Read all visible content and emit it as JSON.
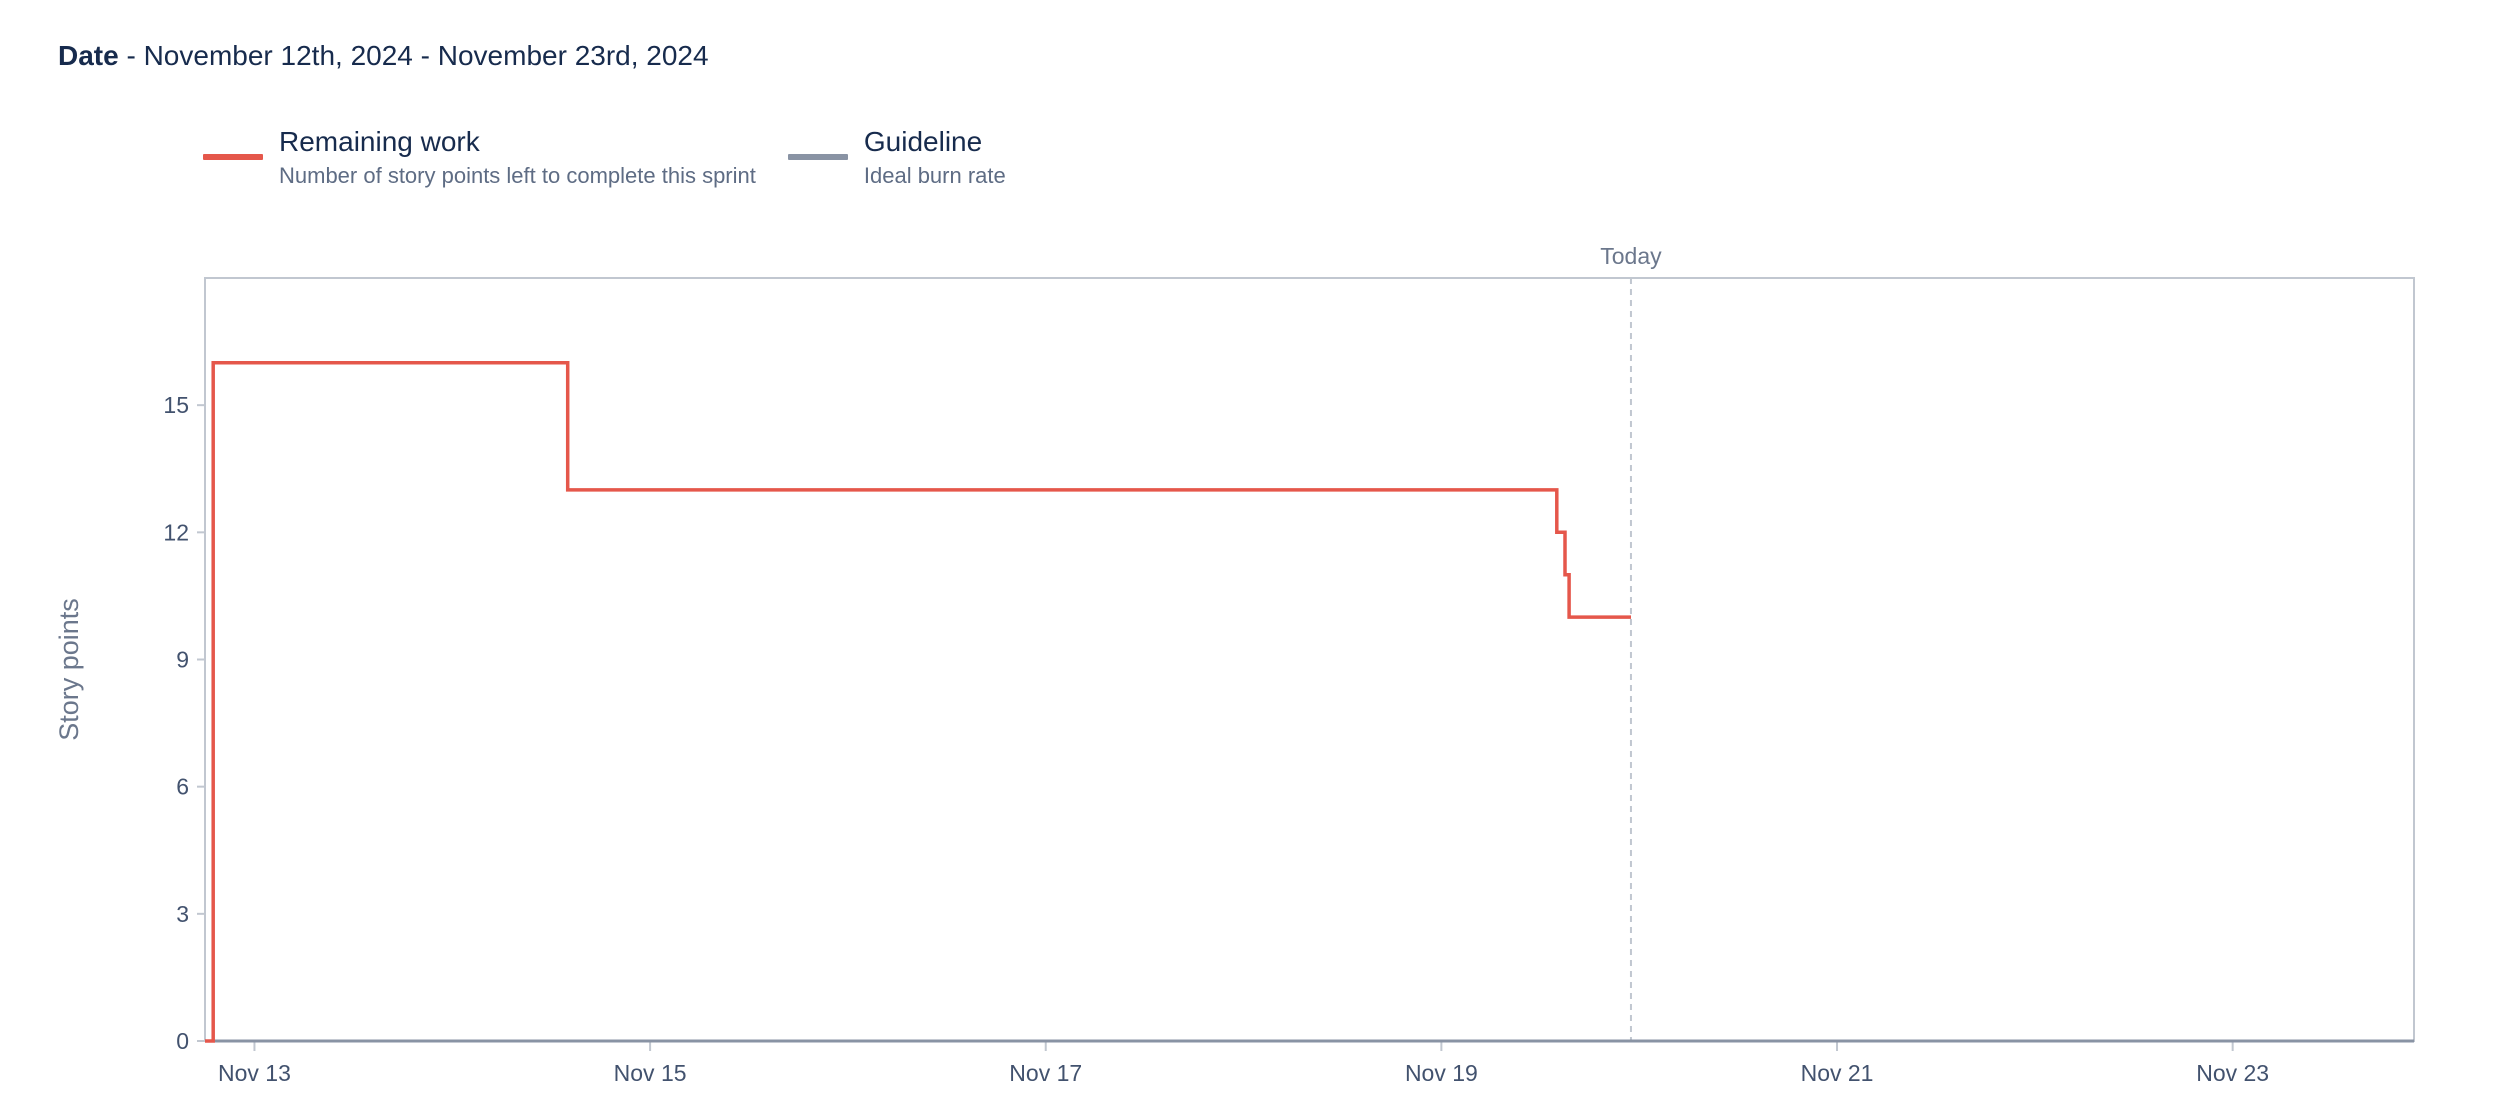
{
  "header": {
    "date_label": "Date",
    "date_range": " - November 12th, 2024 - November 23rd, 2024"
  },
  "legend": [
    {
      "title": "Remaining work",
      "description": "Number of story points left to complete this sprint",
      "color": "#e5574b"
    },
    {
      "title": "Guideline",
      "description": "Ideal burn rate",
      "color": "#8993a4"
    }
  ],
  "chart_data": {
    "type": "line",
    "title": "",
    "xlabel": "",
    "ylabel": "Story points",
    "xlim": [
      "2024-11-12T18:00",
      "2024-11-23T22:00"
    ],
    "ylim": [
      0,
      18
    ],
    "x_ticks": [
      "Nov 13",
      "Nov 15",
      "Nov 17",
      "Nov 19",
      "Nov 21",
      "Nov 23"
    ],
    "y_ticks": [
      0,
      3,
      6,
      9,
      12,
      15
    ],
    "grid": false,
    "today_marker": {
      "label": "Today",
      "x": "2024-11-19T23:00"
    },
    "series": [
      {
        "name": "Remaining work",
        "color": "#e5574b",
        "step": true,
        "points": [
          {
            "x": "2024-11-12T18:00",
            "y": 0
          },
          {
            "x": "2024-11-12T19:00",
            "y": 0
          },
          {
            "x": "2024-11-12T19:00",
            "y": 8
          },
          {
            "x": "2024-11-12T19:00",
            "y": 10
          },
          {
            "x": "2024-11-12T19:00",
            "y": 16
          },
          {
            "x": "2024-11-14T14:00",
            "y": 16
          },
          {
            "x": "2024-11-14T14:00",
            "y": 13
          },
          {
            "x": "2024-11-19T14:00",
            "y": 13
          },
          {
            "x": "2024-11-19T14:00",
            "y": 12
          },
          {
            "x": "2024-11-19T15:00",
            "y": 12
          },
          {
            "x": "2024-11-19T15:00",
            "y": 11
          },
          {
            "x": "2024-11-19T15:30",
            "y": 11
          },
          {
            "x": "2024-11-19T15:30",
            "y": 10
          },
          {
            "x": "2024-11-19T23:00",
            "y": 10
          }
        ]
      },
      {
        "name": "Guideline",
        "color": "#8993a4",
        "points": [
          {
            "x": "2024-11-12T18:00",
            "y": 0
          },
          {
            "x": "2024-11-23T22:00",
            "y": 0
          }
        ]
      }
    ]
  }
}
